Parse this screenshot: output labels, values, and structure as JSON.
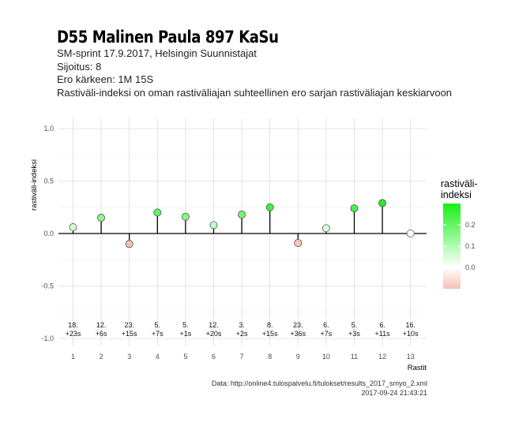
{
  "header": {
    "title": "D55 Malinen Paula 897 KaSu",
    "lines": [
      "SM-sprint 17.9.2017, Helsingin Suunnistajat",
      "Sijoitus: 8",
      "Ero kärkeen: 1M 15S",
      "Rastiväli-indeksi on oman rastiväliajan suhteellinen ero sarjan rastiväliajan keskiarvoon"
    ]
  },
  "caption": {
    "source": "Data: http://online4.tulospalvelu.fi/tulokset/results_2017_smyo_2.xml",
    "timestamp": "2017-09-24 21:43:21"
  },
  "chart_data": {
    "type": "lollipop",
    "xlabel": "Rastit",
    "ylabel": "rastiväli-indeksi",
    "ylim": [
      -1.05,
      1.05
    ],
    "yticks": [
      -1.0,
      -0.5,
      0.0,
      0.5,
      1.0
    ],
    "ytick_labels": [
      "-1.0",
      "-0.5",
      "0.0",
      "0.5",
      "1.0"
    ],
    "x": [
      1,
      2,
      3,
      4,
      5,
      6,
      7,
      8,
      9,
      10,
      11,
      12,
      13
    ],
    "values": [
      0.06,
      0.15,
      -0.1,
      0.2,
      0.16,
      0.08,
      0.18,
      0.25,
      -0.09,
      0.05,
      0.24,
      0.29,
      0.0
    ],
    "annotations": [
      [
        "18.",
        "+23s"
      ],
      [
        "12.",
        "+6s"
      ],
      [
        "23.",
        "+15s"
      ],
      [
        "5.",
        "+7s"
      ],
      [
        "5.",
        "+1s"
      ],
      [
        "12.",
        "+20s"
      ],
      [
        "3.",
        "+2s"
      ],
      [
        "8.",
        "+15s"
      ],
      [
        "23.",
        "+36s"
      ],
      [
        "6.",
        "+7s"
      ],
      [
        "5.",
        "+3s"
      ],
      [
        "6.",
        "+11s"
      ],
      [
        "16.",
        "+10s"
      ]
    ],
    "legend": {
      "title_lines": [
        "rastiväli-",
        "indeksi"
      ],
      "placement": "right",
      "min": -0.1,
      "max": 0.3,
      "ticks": [
        0.0,
        0.1,
        0.2
      ],
      "tick_labels": [
        "0.0",
        "0.1",
        "0.2"
      ],
      "colors": {
        "low": "#f5c2b0",
        "mid": "#ffffff",
        "high": "#17f017"
      }
    },
    "grid": true
  }
}
